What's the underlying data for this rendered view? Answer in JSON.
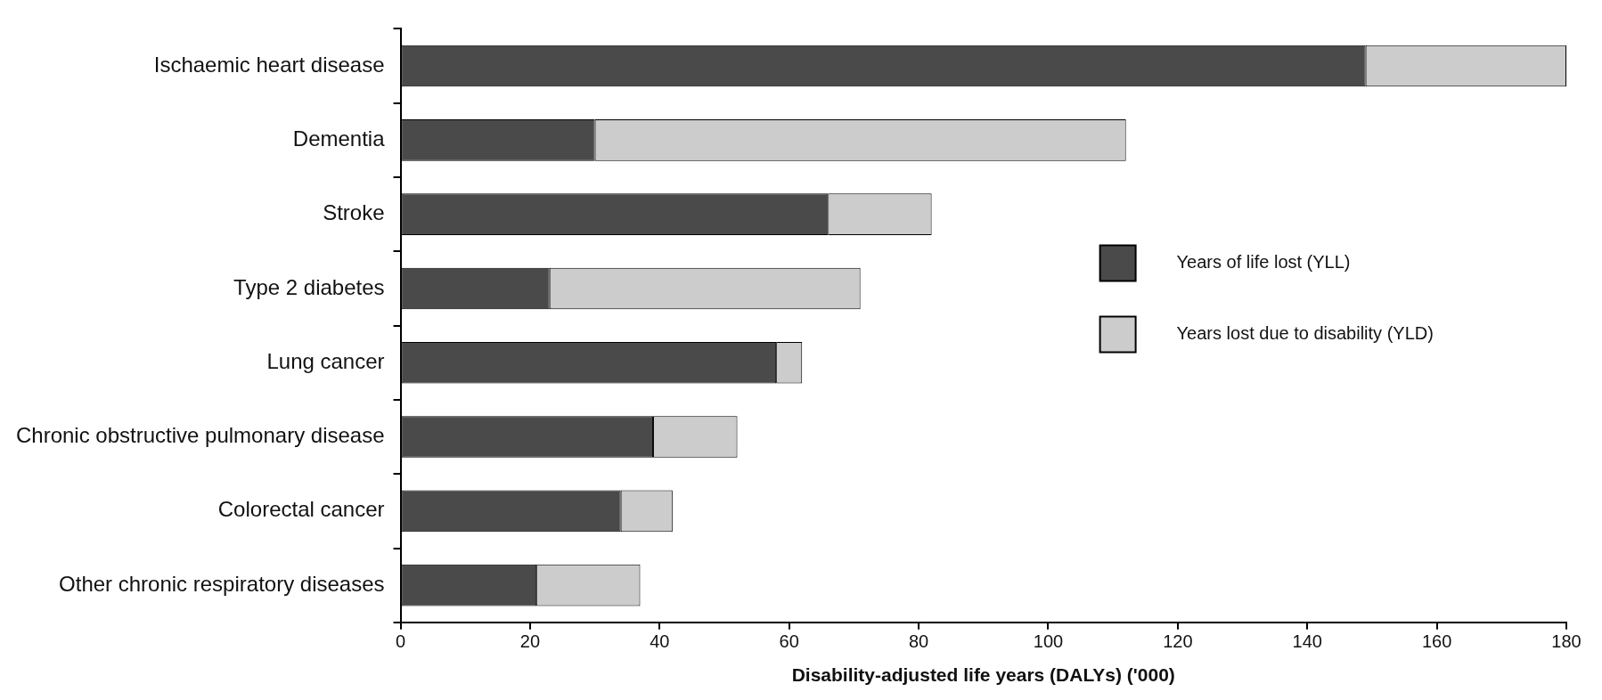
{
  "chart_data": {
    "type": "bar",
    "orientation": "horizontal",
    "stacked": true,
    "xlabel": "Disability-adjusted life years (DALYs) ('000)",
    "categories": [
      "Ischaemic heart disease",
      "Dementia",
      "Stroke",
      "Type 2 diabetes",
      "Lung cancer",
      "Chronic obstructive pulmonary disease",
      "Colorectal cancer",
      "Other chronic respiratory diseases"
    ],
    "series": [
      {
        "name": "Years of life lost (YLL)",
        "color": "#4a4a4a",
        "values": [
          149,
          30,
          66,
          23,
          58,
          39,
          34,
          21
        ]
      },
      {
        "name": "Years lost due to disability (YLD)",
        "color": "#cccccc",
        "values": [
          31,
          82,
          16,
          48,
          4,
          13,
          8,
          16
        ]
      }
    ],
    "xlim": [
      0,
      180
    ],
    "xticks": [
      0,
      20,
      40,
      60,
      80,
      100,
      120,
      140,
      160,
      180
    ],
    "legend": "right"
  }
}
